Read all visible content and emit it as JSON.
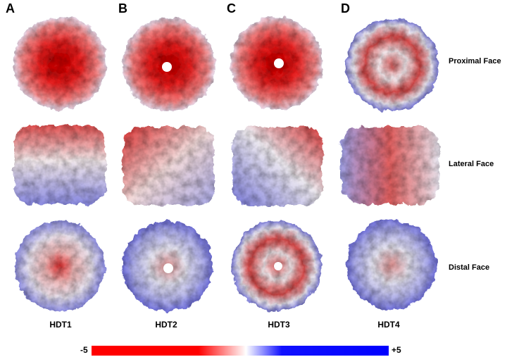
{
  "panels": [
    "A",
    "B",
    "C",
    "D"
  ],
  "rows": [
    "Proximal Face",
    "Lateral Face",
    "Distal Face"
  ],
  "columns": [
    "HDT1",
    "HDT2",
    "HDT3",
    "HDT4"
  ],
  "colorbar": {
    "min_label": "-5",
    "max_label": "+5"
  }
}
